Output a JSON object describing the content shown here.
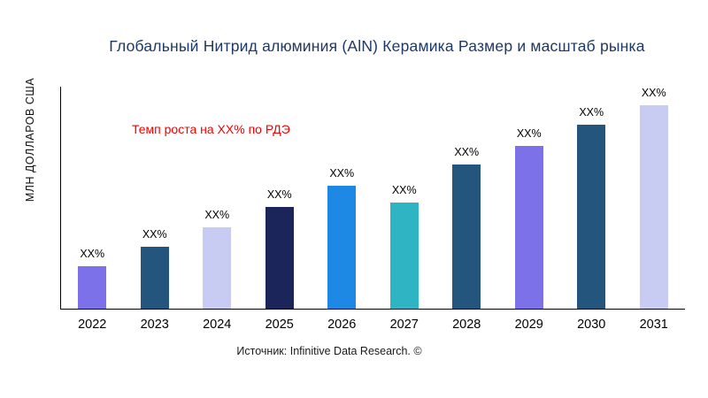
{
  "title": "Глобальный Нитрид алюминия (AlN) Керамика Размер и масштаб рынка",
  "source": "Источник: Infinitive Data Research. ©",
  "colors": {
    "title_text": "#1f3864",
    "annotation_text": "#f40000",
    "axis": "#000000"
  },
  "chart_data": {
    "type": "bar",
    "title": "Глобальный Нитрид алюминия (AlN) Керамика Размер и масштаб рынка",
    "xlabel": "",
    "ylabel": "МЛН ДОЛЛАРОВ США",
    "annotation": "Темп роста на XX% по РДЭ",
    "categories": [
      "2022",
      "2023",
      "2024",
      "2025",
      "2026",
      "2027",
      "2028",
      "2029",
      "2030",
      "2031"
    ],
    "values": [
      48,
      70,
      92,
      115,
      138,
      120,
      162,
      183,
      207,
      230
    ],
    "bar_labels": [
      "XX%",
      "XX%",
      "XX%",
      "XX%",
      "XX%",
      "XX%",
      "XX%",
      "XX%",
      "XX%",
      "XX%"
    ],
    "bar_colors": [
      "#7c71e8",
      "#24567d",
      "#c9ccf2",
      "#1b2559",
      "#1e88e5",
      "#2fb4c4",
      "#24567d",
      "#7c71e8",
      "#24567d",
      "#c9ccf2"
    ],
    "ylim": [
      0,
      250
    ],
    "grid": false,
    "legend": false,
    "note": "values are relative bar heights in arbitrary units; data labels show XX% placeholders"
  }
}
